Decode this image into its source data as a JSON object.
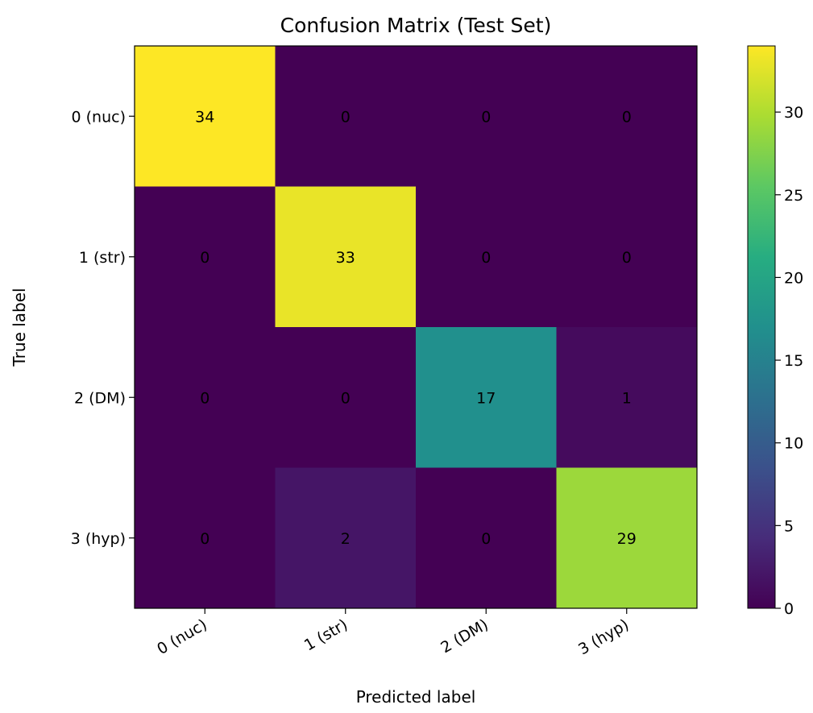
{
  "chart_data": {
    "type": "heatmap",
    "title": "Confusion Matrix (Test Set)",
    "xlabel": "Predicted label",
    "ylabel": "True label",
    "x_categories": [
      "0 (nuc)",
      "1 (str)",
      "2 (DM)",
      "3 (hyp)"
    ],
    "y_categories": [
      "0 (nuc)",
      "1 (str)",
      "2 (DM)",
      "3 (hyp)"
    ],
    "values": [
      [
        34,
        0,
        0,
        0
      ],
      [
        0,
        33,
        0,
        0
      ],
      [
        0,
        0,
        17,
        1
      ],
      [
        0,
        2,
        0,
        29
      ]
    ],
    "colormap": "viridis",
    "colorbar": {
      "min": 0,
      "max": 34,
      "ticks": [
        0,
        5,
        10,
        15,
        20,
        25,
        30
      ]
    },
    "grid": false
  }
}
